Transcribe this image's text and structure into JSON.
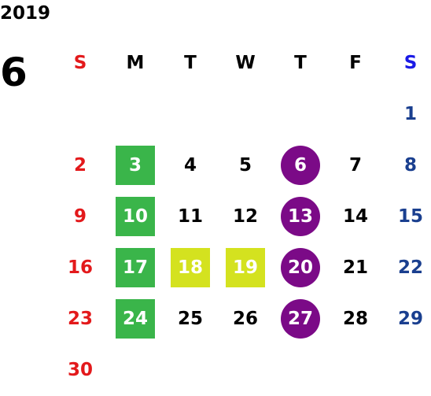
{
  "calendar": {
    "year": "2019",
    "month": "6",
    "weekdays": [
      "S",
      "M",
      "T",
      "W",
      "T",
      "F",
      "S"
    ],
    "weekday_colors": [
      "#e3191b",
      "#000000",
      "#000000",
      "#000000",
      "#000000",
      "#000000",
      "#1a1ae6"
    ],
    "day_colors": [
      "#e3191b",
      "#000000",
      "#000000",
      "#000000",
      "#000000",
      "#000000",
      "#1a3f8f"
    ],
    "mark_colors": {
      "green": "#3ab54a",
      "yellow": "#d4e21f",
      "purple": "#7b0a87"
    },
    "weeks": [
      [
        null,
        null,
        null,
        null,
        null,
        null,
        {
          "day": "1"
        }
      ],
      [
        {
          "day": "2"
        },
        {
          "day": "3",
          "mark": "green",
          "shape": "square"
        },
        {
          "day": "4"
        },
        {
          "day": "5"
        },
        {
          "day": "6",
          "mark": "purple",
          "shape": "circle"
        },
        {
          "day": "7"
        },
        {
          "day": "8"
        }
      ],
      [
        {
          "day": "9"
        },
        {
          "day": "10",
          "mark": "green",
          "shape": "square"
        },
        {
          "day": "11"
        },
        {
          "day": "12"
        },
        {
          "day": "13",
          "mark": "purple",
          "shape": "circle"
        },
        {
          "day": "14"
        },
        {
          "day": "15"
        }
      ],
      [
        {
          "day": "16"
        },
        {
          "day": "17",
          "mark": "green",
          "shape": "square"
        },
        {
          "day": "18",
          "mark": "yellow",
          "shape": "square"
        },
        {
          "day": "19",
          "mark": "yellow",
          "shape": "square"
        },
        {
          "day": "20",
          "mark": "purple",
          "shape": "circle"
        },
        {
          "day": "21"
        },
        {
          "day": "22"
        }
      ],
      [
        {
          "day": "23"
        },
        {
          "day": "24",
          "mark": "green",
          "shape": "square"
        },
        {
          "day": "25"
        },
        {
          "day": "26"
        },
        {
          "day": "27",
          "mark": "purple",
          "shape": "circle"
        },
        {
          "day": "28"
        },
        {
          "day": "29"
        }
      ],
      [
        {
          "day": "30"
        },
        null,
        null,
        null,
        null,
        null,
        null
      ]
    ]
  }
}
